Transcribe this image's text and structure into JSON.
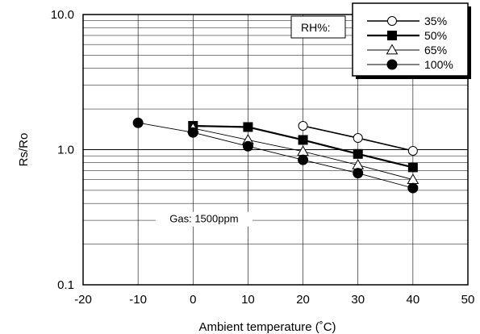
{
  "chart_data": {
    "type": "line",
    "title": "",
    "xlabel": "Ambient temperature (˚C)",
    "ylabel": "Rs/Ro",
    "xlim": [
      -20,
      50
    ],
    "ylim": [
      0.1,
      10.0
    ],
    "yscale": "log",
    "grid": true,
    "x_ticks": [
      "-20",
      "-10",
      "0",
      "10",
      "20",
      "30",
      "40",
      "50"
    ],
    "y_ticks": [
      "0.1",
      "1.0",
      "10.0"
    ],
    "legend_title": "RH%:",
    "legend_position": "top-right",
    "annotation": "Gas: 1500ppm",
    "series": [
      {
        "name": "35%",
        "marker": "open-circle",
        "x": [
          20,
          30,
          40
        ],
        "y": [
          1.5,
          1.22,
          0.98
        ]
      },
      {
        "name": "50%",
        "marker": "filled-square",
        "x": [
          0,
          10,
          20,
          30,
          40
        ],
        "y": [
          1.5,
          1.47,
          1.18,
          0.93,
          0.74
        ]
      },
      {
        "name": "65%",
        "marker": "open-triangle",
        "x": [
          0,
          10,
          20,
          30,
          40
        ],
        "y": [
          1.44,
          1.18,
          0.97,
          0.77,
          0.6
        ]
      },
      {
        "name": "100%",
        "marker": "filled-circle",
        "x": [
          -10,
          0,
          10,
          20,
          30,
          40
        ],
        "y": [
          1.58,
          1.34,
          1.06,
          0.84,
          0.67,
          0.52
        ]
      }
    ]
  }
}
